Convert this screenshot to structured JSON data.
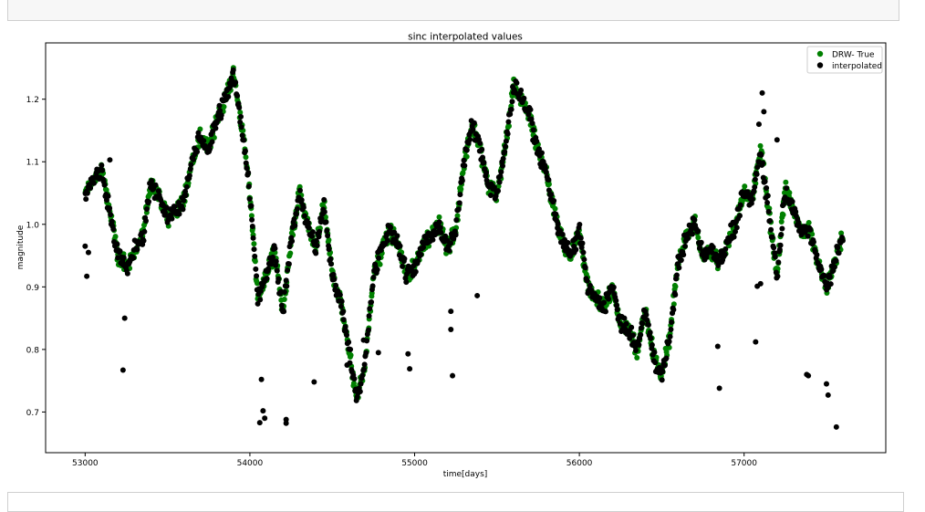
{
  "chart_data": {
    "type": "scatter",
    "title": "sinc interpolated values",
    "xlabel": "time[days]",
    "ylabel": "magnitude",
    "xlim": [
      52760,
      57860
    ],
    "ylim": [
      0.635,
      1.29
    ],
    "xticks": [
      53000,
      54000,
      55000,
      56000,
      57000
    ],
    "yticks": [
      0.7,
      0.8,
      0.9,
      1.0,
      1.1,
      1.2
    ],
    "xtick_labels": [
      "53000",
      "54000",
      "55000",
      "56000",
      "57000"
    ],
    "ytick_labels": [
      "0.7",
      "0.8",
      "0.9",
      "1.0",
      "1.1",
      "1.2"
    ],
    "grid": false,
    "legend_position": "top-right",
    "series": [
      {
        "name": "DRW- True",
        "color": "#008000",
        "trend": {
          "x": [
            53000,
            53050,
            53100,
            53150,
            53200,
            53250,
            53300,
            53350,
            53400,
            53450,
            53500,
            53550,
            53600,
            53650,
            53700,
            53750,
            53800,
            53850,
            53900,
            53950,
            54000,
            54050,
            54100,
            54150,
            54200,
            54250,
            54300,
            54350,
            54400,
            54450,
            54500,
            54550,
            54600,
            54650,
            54700,
            54750,
            54800,
            54850,
            54900,
            54950,
            55000,
            55050,
            55100,
            55150,
            55200,
            55250,
            55300,
            55350,
            55400,
            55450,
            55500,
            55550,
            55600,
            55650,
            55700,
            55750,
            55800,
            55850,
            55900,
            55950,
            56000,
            56050,
            56100,
            56150,
            56200,
            56250,
            56300,
            56350,
            56400,
            56450,
            56500,
            56550,
            56600,
            56650,
            56700,
            56750,
            56800,
            56850,
            56900,
            56950,
            57000,
            57050,
            57100,
            57150,
            57200,
            57250,
            57300,
            57350,
            57400,
            57450,
            57500,
            57550,
            57600
          ],
          "y": [
            1.05,
            1.07,
            1.09,
            1.02,
            0.95,
            0.93,
            0.96,
            0.98,
            1.07,
            1.04,
            1.01,
            1.02,
            1.04,
            1.1,
            1.14,
            1.12,
            1.17,
            1.2,
            1.24,
            1.16,
            1.05,
            0.88,
            0.92,
            0.96,
            0.86,
            0.97,
            1.05,
            1.0,
            0.96,
            1.03,
            0.92,
            0.88,
            0.8,
            0.72,
            0.78,
            0.92,
            0.96,
            0.99,
            0.97,
            0.92,
            0.93,
            0.97,
            0.98,
            1.0,
            0.96,
            0.99,
            1.1,
            1.16,
            1.12,
            1.06,
            1.05,
            1.12,
            1.22,
            1.2,
            1.17,
            1.12,
            1.08,
            1.02,
            0.97,
            0.95,
            0.99,
            0.9,
            0.88,
            0.87,
            0.9,
            0.84,
            0.83,
            0.8,
            0.86,
            0.79,
            0.76,
            0.82,
            0.94,
            0.98,
            1.0,
            0.95,
            0.96,
            0.94,
            0.97,
            1.0,
            1.05,
            1.04,
            1.12,
            1.02,
            0.92,
            1.06,
            1.02,
            0.99,
            0.99,
            0.94,
            0.9,
            0.94,
            0.98
          ]
        }
      },
      {
        "name": "interpolated",
        "color": "#000000",
        "outliers": {
          "x": [
            53000,
            53010,
            53020,
            53230,
            53150,
            53240,
            54070,
            54080,
            54090,
            54060,
            54220,
            54220,
            54390,
            54590,
            54690,
            54780,
            54960,
            54970,
            55220,
            55220,
            55230,
            55380,
            55870,
            56840,
            56850,
            57070,
            57080,
            57100,
            57110,
            57120,
            57090,
            57200,
            57380,
            57390,
            57480,
            57500,
            57510,
            57560
          ],
          "y": [
            0.965,
            0.917,
            0.955,
            0.767,
            1.103,
            0.85,
            0.752,
            0.702,
            0.69,
            0.683,
            0.688,
            0.682,
            0.748,
            0.775,
            0.815,
            0.795,
            0.793,
            0.769,
            0.861,
            0.832,
            0.758,
            0.886,
            0.985,
            0.805,
            0.738,
            0.812,
            0.901,
            0.905,
            1.21,
            1.18,
            1.16,
            1.135,
            0.76,
            0.758,
            0.918,
            0.745,
            0.727,
            0.676
          ]
        }
      }
    ]
  }
}
